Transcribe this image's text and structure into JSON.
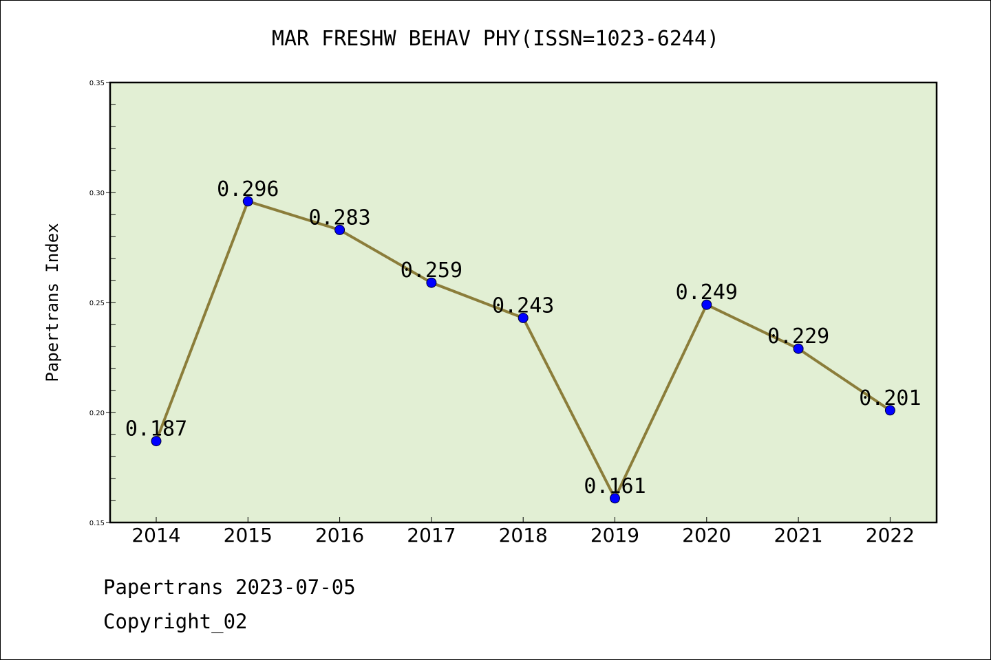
{
  "chart_data": {
    "type": "line",
    "title": "MAR FRESHW BEHAV PHY(ISSN=1023-6244)",
    "xlabel": "",
    "ylabel": "Papertrans Index",
    "categories": [
      "2014",
      "2015",
      "2016",
      "2017",
      "2018",
      "2019",
      "2020",
      "2021",
      "2022"
    ],
    "series": [
      {
        "values": [
          0.187,
          0.296,
          0.283,
          0.259,
          0.243,
          0.161,
          0.249,
          0.229,
          0.201
        ]
      }
    ],
    "data_labels": [
      "0.187",
      "0.296",
      "0.283",
      "0.259",
      "0.243",
      "0.161",
      "0.249",
      "0.229",
      "0.201"
    ],
    "ylim": [
      0.15,
      0.35
    ],
    "yticks": [
      0.15,
      0.2,
      0.25,
      0.3,
      0.35
    ],
    "ytick_labels": [
      "0.15",
      "0.20",
      "0.25",
      "0.30",
      "0.35"
    ],
    "grid": false,
    "legend": "none",
    "colors": {
      "plot_background": "#e2efd4",
      "line": "#8b7d3a",
      "marker": "#0000ff"
    }
  },
  "footer": {
    "line1": "Papertrans 2023-07-05",
    "line2": "Copyright_02"
  }
}
